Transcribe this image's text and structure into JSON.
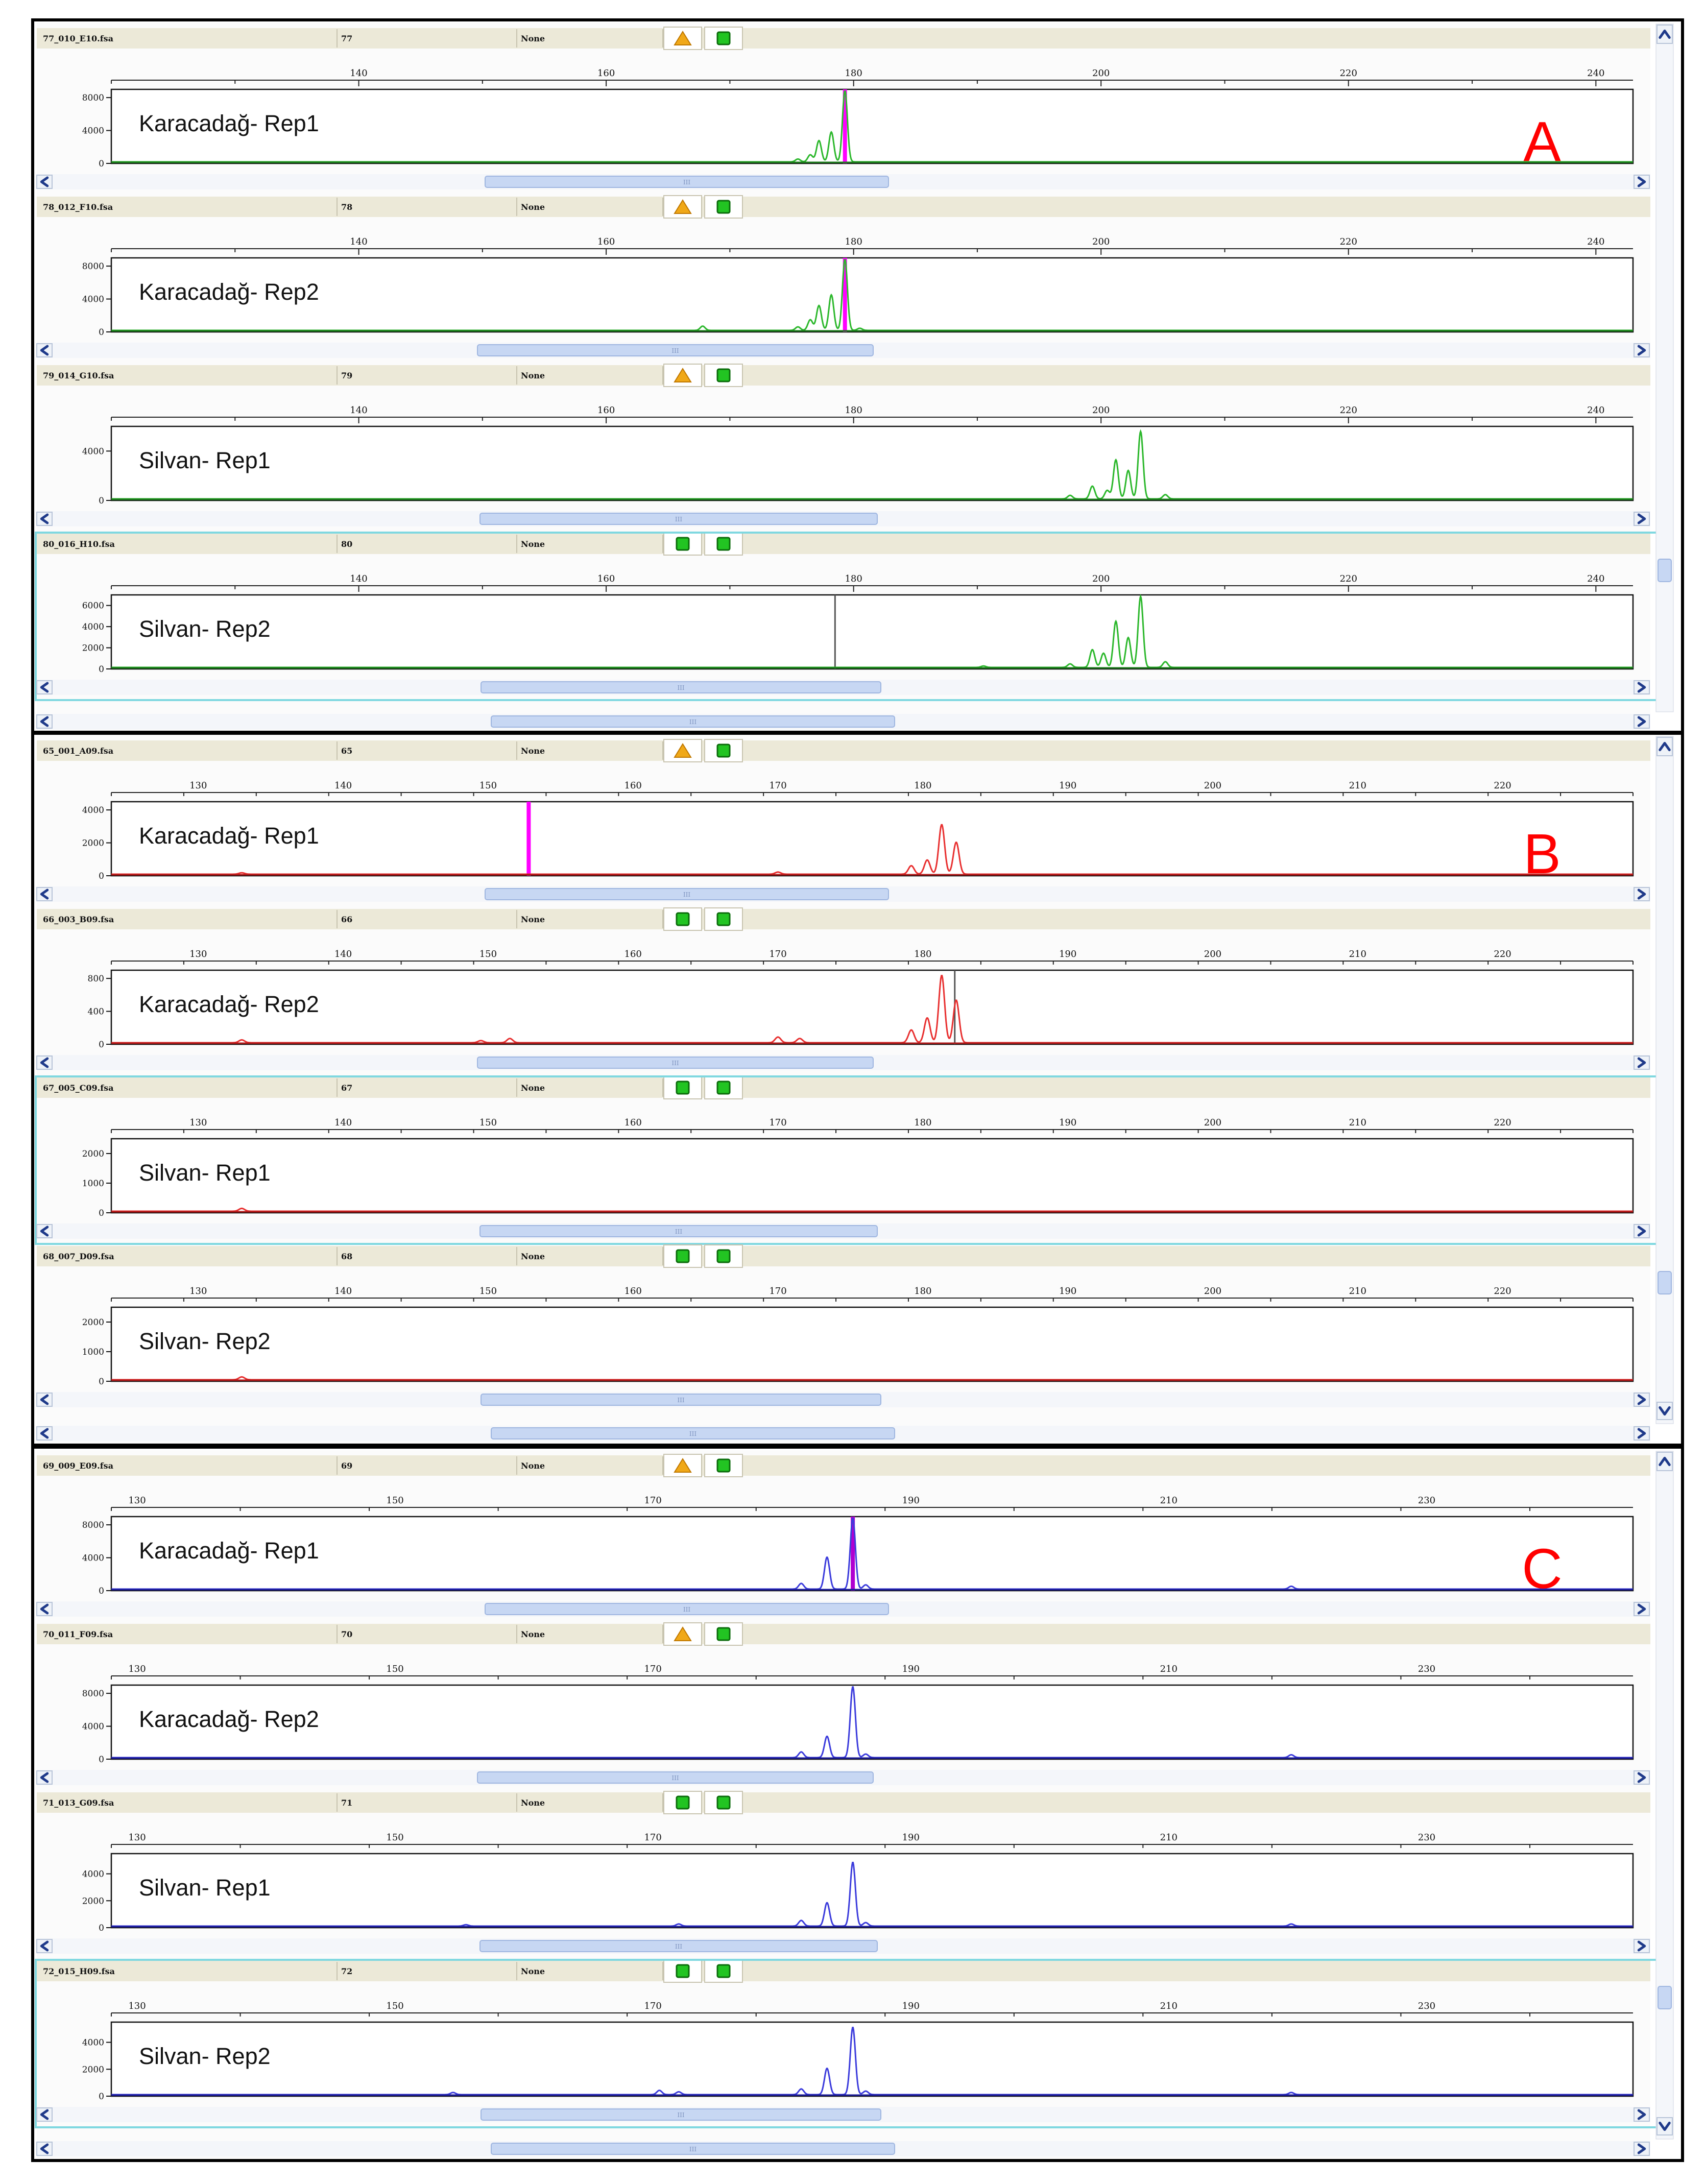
{
  "panels": [
    {
      "letter": "A",
      "letter_color": "#ff0000",
      "trace_color": "#2db82d",
      "baseline_color": "#1a7a1a",
      "axis": {
        "min": 120,
        "max": 243,
        "ticks": [
          140,
          160,
          180,
          200,
          220,
          240
        ]
      },
      "tracks": [
        {
          "file": "77_010_E10.fsa",
          "num": "77",
          "status": "None",
          "icon1": "warning-triangle",
          "icon2": "green-square",
          "label": "Karacadağ- Rep1",
          "y_ticks": [
            "8000",
            "4000",
            "0"
          ],
          "y_max": 9000,
          "selected": false,
          "peaks": [
            [
              175.5,
              0.04
            ],
            [
              176.5,
              0.1
            ],
            [
              177.2,
              0.3
            ],
            [
              178.2,
              0.42
            ],
            [
              179.3,
              1.0
            ]
          ],
          "marker": {
            "x": 179.3,
            "color": "#ff00ff"
          }
        },
        {
          "file": "78_012_F10.fsa",
          "num": "78",
          "status": "None",
          "icon1": "warning-triangle",
          "icon2": "green-square",
          "label": "Karacadağ- Rep2",
          "y_ticks": [
            "8000",
            "4000",
            "0"
          ],
          "y_max": 9000,
          "selected": false,
          "peaks": [
            [
              167.8,
              0.06
            ],
            [
              175.5,
              0.05
            ],
            [
              176.5,
              0.15
            ],
            [
              177.2,
              0.35
            ],
            [
              178.2,
              0.5
            ],
            [
              179.3,
              1.0
            ],
            [
              180.5,
              0.03
            ]
          ],
          "marker": {
            "x": 179.3,
            "color": "#ff00ff"
          }
        },
        {
          "file": "79_014_G10.fsa",
          "num": "79",
          "status": "None",
          "icon1": "warning-triangle",
          "icon2": "green-square",
          "label": "Silvan- Rep1",
          "y_ticks": [
            "4000",
            "0"
          ],
          "y_max": 6000,
          "selected": false,
          "peaks": [
            [
              197.5,
              0.05
            ],
            [
              199.3,
              0.18
            ],
            [
              200.5,
              0.12
            ],
            [
              201.2,
              0.55
            ],
            [
              202.2,
              0.4
            ],
            [
              203.2,
              0.95
            ],
            [
              205.2,
              0.06
            ]
          ],
          "marker": null
        },
        {
          "file": "80_016_H10.fsa",
          "num": "80",
          "status": "None",
          "icon1": "green-square",
          "icon2": "green-square",
          "label": "Silvan- Rep2",
          "y_ticks": [
            "6000",
            "4000",
            "2000",
            "0"
          ],
          "y_max": 7000,
          "selected": true,
          "peaks": [
            [
              190.5,
              0.02
            ],
            [
              197.5,
              0.05
            ],
            [
              199.3,
              0.25
            ],
            [
              200.2,
              0.2
            ],
            [
              201.2,
              0.65
            ],
            [
              202.2,
              0.42
            ],
            [
              203.2,
              1.0
            ],
            [
              205.2,
              0.08
            ]
          ],
          "marker": {
            "x": 178.5,
            "color": "#555555"
          }
        }
      ]
    },
    {
      "letter": "B",
      "letter_color": "#ff0000",
      "trace_color": "#e83030",
      "baseline_color": "#b01818",
      "axis": {
        "min": 124,
        "max": 229,
        "ticks": [
          130,
          140,
          150,
          160,
          170,
          180,
          190,
          200,
          210,
          220
        ]
      },
      "tracks": [
        {
          "file": "65_001_A09.fsa",
          "num": "65",
          "status": "None",
          "icon1": "warning-triangle",
          "icon2": "green-square",
          "label": "Karacadağ- Rep1",
          "y_ticks": [
            "4000",
            "2000",
            "0"
          ],
          "y_max": 4500,
          "selected": false,
          "peaks": [
            [
              133,
              0.02
            ],
            [
              170,
              0.03
            ],
            [
              179.2,
              0.12
            ],
            [
              180.3,
              0.2
            ],
            [
              181.3,
              0.7
            ],
            [
              182.3,
              0.45
            ]
          ],
          "marker": {
            "x": 152.8,
            "color": "#ff00ff"
          }
        },
        {
          "file": "66_003_B09.fsa",
          "num": "66",
          "status": "None",
          "icon1": "green-square",
          "icon2": "green-square",
          "label": "Karacadağ- Rep2",
          "y_ticks": [
            "800",
            "400",
            "0"
          ],
          "y_max": 900,
          "selected": false,
          "peaks": [
            [
              133,
              0.04
            ],
            [
              149.5,
              0.03
            ],
            [
              151.5,
              0.06
            ],
            [
              170,
              0.08
            ],
            [
              171.5,
              0.06
            ],
            [
              179.2,
              0.18
            ],
            [
              180.3,
              0.35
            ],
            [
              181.3,
              0.95
            ],
            [
              182.3,
              0.6
            ]
          ],
          "marker": {
            "x": 182.2,
            "color": "#555555"
          }
        },
        {
          "file": "67_005_C09.fsa",
          "num": "67",
          "status": "None",
          "icon1": "green-square",
          "icon2": "green-square",
          "label": "Silvan- Rep1",
          "y_ticks": [
            "2000",
            "1000",
            "0"
          ],
          "y_max": 2500,
          "selected": true,
          "peaks": [
            [
              133,
              0.04
            ]
          ],
          "marker": null
        },
        {
          "file": "68_007_D09.fsa",
          "num": "68",
          "status": "None",
          "icon1": "green-square",
          "icon2": "green-square",
          "label": "Silvan- Rep2",
          "y_ticks": [
            "2000",
            "1000",
            "0"
          ],
          "y_max": 2500,
          "selected": false,
          "peaks": [
            [
              133,
              0.04
            ]
          ],
          "marker": null
        }
      ]
    },
    {
      "letter": "C",
      "letter_color": "#ff0000",
      "trace_color": "#3c3cdc",
      "baseline_color": "#1a1a9a",
      "axis": {
        "min": 128,
        "max": 246,
        "ticks": [
          130,
          150,
          170,
          190,
          210,
          230
        ]
      },
      "tracks": [
        {
          "file": "69_009_E09.fsa",
          "num": "69",
          "status": "None",
          "icon1": "warning-triangle",
          "icon2": "green-square",
          "label": "Karacadağ- Rep1",
          "y_ticks": [
            "8000",
            "4000",
            "0"
          ],
          "y_max": 9000,
          "selected": false,
          "peaks": [
            [
              181.5,
              0.08
            ],
            [
              183.5,
              0.45
            ],
            [
              185.5,
              1.0
            ],
            [
              186.5,
              0.06
            ],
            [
              219.5,
              0.04
            ]
          ],
          "marker": {
            "x": 185.5,
            "color": "#b000d0"
          }
        },
        {
          "file": "70_011_F09.fsa",
          "num": "70",
          "status": "None",
          "icon1": "warning-triangle",
          "icon2": "green-square",
          "label": "Karacadağ- Rep2",
          "y_ticks": [
            "8000",
            "4000",
            "0"
          ],
          "y_max": 9000,
          "selected": false,
          "peaks": [
            [
              181.5,
              0.08
            ],
            [
              183.5,
              0.3
            ],
            [
              185.5,
              1.0
            ],
            [
              186.5,
              0.05
            ],
            [
              219.5,
              0.04
            ]
          ],
          "marker": null
        },
        {
          "file": "71_013_G09.fsa",
          "num": "71",
          "status": "None",
          "icon1": "green-square",
          "icon2": "green-square",
          "label": "Silvan- Rep1",
          "y_ticks": [
            "4000",
            "2000",
            "0"
          ],
          "y_max": 5500,
          "selected": false,
          "peaks": [
            [
              155.5,
              0.02
            ],
            [
              172,
              0.03
            ],
            [
              181.5,
              0.08
            ],
            [
              183.5,
              0.33
            ],
            [
              185.5,
              0.9
            ],
            [
              186.5,
              0.05
            ],
            [
              219.5,
              0.03
            ]
          ],
          "marker": null
        },
        {
          "file": "72_015_H09.fsa",
          "num": "72",
          "status": "None",
          "icon1": "green-square",
          "icon2": "green-square",
          "label": "Silvan- Rep2",
          "y_ticks": [
            "4000",
            "2000",
            "0"
          ],
          "y_max": 5500,
          "selected": true,
          "peaks": [
            [
              154.5,
              0.03
            ],
            [
              170.5,
              0.06
            ],
            [
              172,
              0.04
            ],
            [
              181.5,
              0.08
            ],
            [
              183.5,
              0.37
            ],
            [
              185.5,
              0.95
            ],
            [
              186.5,
              0.05
            ],
            [
              219.5,
              0.03
            ]
          ],
          "marker": null
        }
      ]
    }
  ],
  "scroll_glyph": "III",
  "arrow_left": "<",
  "arrow_right": ">",
  "arrow_up": "^",
  "arrow_down": "v"
}
